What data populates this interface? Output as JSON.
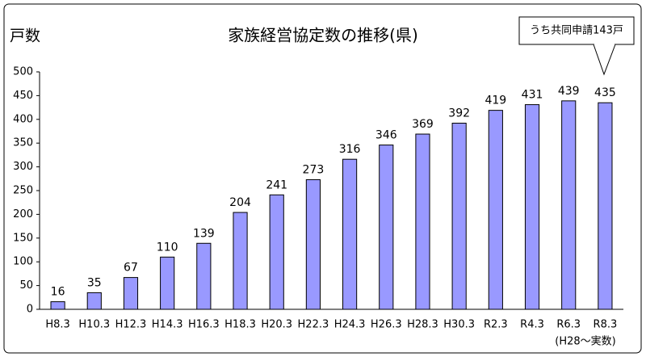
{
  "chart_data": {
    "type": "bar",
    "title": "家族経営協定数の推移(県)",
    "y_label": "戸数",
    "annotation": "うち共同申請143戸",
    "note": "(H28〜実数)",
    "categories": [
      "H8.3",
      "H10.3",
      "H12.3",
      "H14.3",
      "H16.3",
      "H18.3",
      "H20.3",
      "H22.3",
      "H24.3",
      "H26.3",
      "H28.3",
      "H30.3",
      "R2.3",
      "R4.3",
      "R6.3",
      "R8.3"
    ],
    "values": [
      16,
      35,
      67,
      110,
      139,
      204,
      241,
      273,
      316,
      346,
      369,
      392,
      419,
      431,
      439,
      435
    ],
    "color": "#9999ff",
    "ylim": [
      0,
      500
    ],
    "yticks": [
      0,
      50,
      100,
      150,
      200,
      250,
      300,
      350,
      400,
      450,
      500
    ],
    "grid": false
  }
}
